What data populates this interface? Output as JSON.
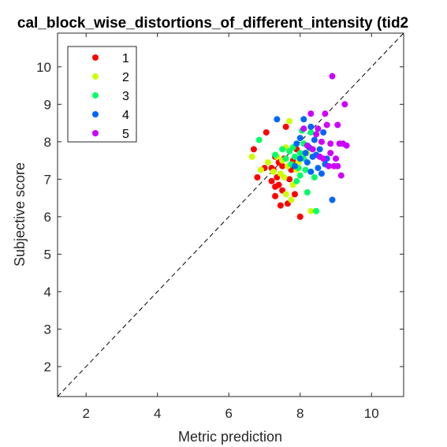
{
  "chart_data": {
    "type": "scatter",
    "title": "cal_block_wise_distortions_of_different_intensity (tid2",
    "xlabel": "Metric prediction",
    "ylabel": "Subjective score",
    "xlim": [
      1.2,
      10.9
    ],
    "ylim": [
      1.2,
      10.9
    ],
    "xticks": [
      2,
      4,
      6,
      8,
      10
    ],
    "yticks": [
      2,
      3,
      4,
      5,
      6,
      7,
      8,
      9,
      10
    ],
    "grid": false,
    "diagonal_reference_line": true,
    "legend_position": "top-left",
    "series": [
      {
        "name": "1",
        "color": "#ff0000",
        "points": [
          [
            6.7,
            7.8
          ],
          [
            6.8,
            7.05
          ],
          [
            7.0,
            7.3
          ],
          [
            7.05,
            8.25
          ],
          [
            7.2,
            7.3
          ],
          [
            7.2,
            6.95
          ],
          [
            7.25,
            7.25
          ],
          [
            7.3,
            7.6
          ],
          [
            7.3,
            6.8
          ],
          [
            7.3,
            6.55
          ],
          [
            7.35,
            7.05
          ],
          [
            7.4,
            6.85
          ],
          [
            7.4,
            7.45
          ],
          [
            7.45,
            6.3
          ],
          [
            7.5,
            7.35
          ],
          [
            7.5,
            6.7
          ],
          [
            7.55,
            7.55
          ],
          [
            7.6,
            8.4
          ],
          [
            7.65,
            6.35
          ],
          [
            7.7,
            7.0
          ],
          [
            7.75,
            7.25
          ],
          [
            7.8,
            7.5
          ],
          [
            7.85,
            6.6
          ],
          [
            7.9,
            7.8
          ],
          [
            8.0,
            6.0
          ]
        ]
      },
      {
        "name": "2",
        "color": "#ccff00",
        "points": [
          [
            6.65,
            7.6
          ],
          [
            6.9,
            7.25
          ],
          [
            7.1,
            7.45
          ],
          [
            7.25,
            7.2
          ],
          [
            7.35,
            7.6
          ],
          [
            7.45,
            7.15
          ],
          [
            7.5,
            7.5
          ],
          [
            7.55,
            7.05
          ],
          [
            7.6,
            7.85
          ],
          [
            7.6,
            6.6
          ],
          [
            7.7,
            8.55
          ],
          [
            7.75,
            6.45
          ],
          [
            7.8,
            6.85
          ],
          [
            7.9,
            7.25
          ],
          [
            8.05,
            7.6
          ],
          [
            8.1,
            7.95
          ],
          [
            8.3,
            6.15
          ],
          [
            8.2,
            7.7
          ],
          [
            7.95,
            7.45
          ],
          [
            7.65,
            7.35
          ]
        ]
      },
      {
        "name": "3",
        "color": "#00ff66",
        "points": [
          [
            6.85,
            8.05
          ],
          [
            7.3,
            7.65
          ],
          [
            7.5,
            7.8
          ],
          [
            7.6,
            7.55
          ],
          [
            7.7,
            7.75
          ],
          [
            7.75,
            7.4
          ],
          [
            7.8,
            7.85
          ],
          [
            7.85,
            7.6
          ],
          [
            7.9,
            6.95
          ],
          [
            7.95,
            7.3
          ],
          [
            8.0,
            7.1
          ],
          [
            8.0,
            7.7
          ],
          [
            8.05,
            8.3
          ],
          [
            8.1,
            7.55
          ],
          [
            8.15,
            7.25
          ],
          [
            8.2,
            6.65
          ],
          [
            8.3,
            8.25
          ],
          [
            8.45,
            6.15
          ],
          [
            8.4,
            7.05
          ],
          [
            8.1,
            7.95
          ]
        ]
      },
      {
        "name": "4",
        "color": "#0066ff",
        "points": [
          [
            7.35,
            8.6
          ],
          [
            7.85,
            7.35
          ],
          [
            7.9,
            7.95
          ],
          [
            8.0,
            8.1
          ],
          [
            8.1,
            8.6
          ],
          [
            8.15,
            7.7
          ],
          [
            8.2,
            7.45
          ],
          [
            8.25,
            7.85
          ],
          [
            8.3,
            8.4
          ],
          [
            8.35,
            7.6
          ],
          [
            8.4,
            8.05
          ],
          [
            8.45,
            7.65
          ],
          [
            8.5,
            7.3
          ],
          [
            8.55,
            7.8
          ],
          [
            8.6,
            7.15
          ],
          [
            8.65,
            8.25
          ],
          [
            8.7,
            7.4
          ],
          [
            8.75,
            7.55
          ],
          [
            8.9,
            6.45
          ],
          [
            8.3,
            7.2
          ],
          [
            8.0,
            7.55
          ]
        ]
      },
      {
        "name": "5",
        "color": "#cc00ff",
        "points": [
          [
            8.1,
            8.35
          ],
          [
            8.2,
            7.9
          ],
          [
            8.3,
            8.75
          ],
          [
            8.35,
            7.8
          ],
          [
            8.45,
            8.2
          ],
          [
            8.5,
            8.35
          ],
          [
            8.6,
            8.0
          ],
          [
            8.65,
            7.55
          ],
          [
            8.7,
            8.75
          ],
          [
            8.75,
            8.45
          ],
          [
            8.8,
            7.35
          ],
          [
            8.85,
            7.7
          ],
          [
            8.9,
            9.75
          ],
          [
            8.95,
            7.35
          ],
          [
            9.0,
            7.55
          ],
          [
            9.05,
            8.45
          ],
          [
            9.1,
            7.95
          ],
          [
            9.15,
            7.1
          ],
          [
            9.2,
            7.95
          ],
          [
            9.25,
            9.0
          ],
          [
            9.3,
            7.9
          ],
          [
            8.85,
            7.95
          ],
          [
            8.55,
            7.6
          ],
          [
            9.05,
            7.35
          ]
        ]
      }
    ]
  }
}
